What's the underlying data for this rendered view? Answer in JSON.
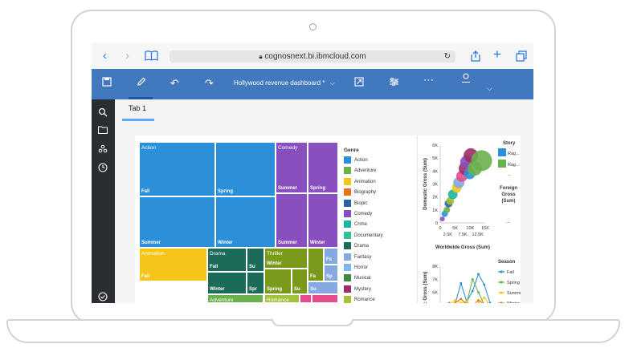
{
  "browser": {
    "url": "cognosnext.bi.ibmcloud.com"
  },
  "app": {
    "dashboard_title": "Hollywood revenue dashboard *"
  },
  "tabs": [
    {
      "label": "Tab 1"
    }
  ],
  "treemap": {
    "cells": [
      {
        "label": "Action",
        "season": "Fall",
        "color": "#2b90d9"
      },
      {
        "label": "",
        "season": "Spring",
        "color": "#2b90d9"
      },
      {
        "label": "",
        "season": "Summer",
        "color": "#2b90d9"
      },
      {
        "label": "",
        "season": "Winter",
        "color": "#2b90d9"
      },
      {
        "label": "Comedy",
        "season": "Summer",
        "color": "#8a4fbf"
      },
      {
        "label": "",
        "season": "Spring",
        "color": "#8a4fbf"
      },
      {
        "label": "",
        "season": "Summer",
        "color": "#8a4fbf"
      },
      {
        "label": "",
        "season": "Winter",
        "color": "#8a4fbf"
      },
      {
        "label": "Animation",
        "season": "Fall",
        "color": "#f5c518"
      },
      {
        "label": "Drama",
        "season": "Fall",
        "color": "#1c6b58"
      },
      {
        "label": "",
        "season": "Su",
        "color": "#1c6b58"
      },
      {
        "label": "",
        "season": "Winter",
        "color": "#1c6b58"
      },
      {
        "label": "",
        "season": "Spr",
        "color": "#1c6b58"
      },
      {
        "label": "Thriller",
        "season": "Winter",
        "color": "#7a9a1c"
      },
      {
        "label": "",
        "season": "Su",
        "color": "#7a9a1c"
      },
      {
        "label": "",
        "season": "Spring",
        "color": "#7a9a1c"
      },
      {
        "label": "",
        "season": "Fa",
        "color": "#7a9a1c"
      },
      {
        "label": "Horror",
        "season": "W",
        "color": "#86a8e0"
      },
      {
        "label": "",
        "season": "Fa",
        "color": "#86a8e0"
      },
      {
        "label": "",
        "season": "Sp",
        "color": "#86a8e0"
      },
      {
        "label": "",
        "season": "Su",
        "color": "#86a8e0"
      },
      {
        "label": "Adventure",
        "season": "",
        "color": "#6ab04c"
      },
      {
        "label": "Romance",
        "season": "",
        "color": "#a3c23a"
      },
      {
        "label": "",
        "season": "",
        "color": "#e94b8a"
      },
      {
        "label": "",
        "season": "",
        "color": "#e94b8a"
      }
    ]
  },
  "legend": {
    "title": "Genre",
    "items": [
      {
        "label": "Action",
        "color": "#2b90d9"
      },
      {
        "label": "Adventure",
        "color": "#6ab04c"
      },
      {
        "label": "Animation",
        "color": "#f5c518"
      },
      {
        "label": "Biography",
        "color": "#e8731a"
      },
      {
        "label": "Biopic",
        "color": "#2d5fa3"
      },
      {
        "label": "Comedy",
        "color": "#8a4fbf"
      },
      {
        "label": "Crime",
        "color": "#1ab5a1"
      },
      {
        "label": "Documentary",
        "color": "#2ec49a"
      },
      {
        "label": "Drama",
        "color": "#1c6b58"
      },
      {
        "label": "Fantasy",
        "color": "#86a8e0"
      },
      {
        "label": "Horror",
        "color": "#7ab7f0"
      },
      {
        "label": "Musical",
        "color": "#3d8a3d"
      },
      {
        "label": "Mystery",
        "color": "#9b2d6b"
      },
      {
        "label": "Romance",
        "color": "#a3c23a"
      }
    ]
  },
  "chart_data": [
    {
      "type": "scatter",
      "xlabel": "Worldwide Gross (Sum)",
      "ylabel": "Domestic Gross (Sum)",
      "x_ticks": [
        "0",
        "2.5K",
        "5K",
        "7.5K",
        "10K",
        "12.5K",
        "15K"
      ],
      "y_ticks": [
        "0",
        "1K",
        "2K",
        "3K",
        "4K",
        "5K",
        "6K"
      ],
      "xlim": [
        0,
        15000
      ],
      "ylim": [
        0,
        6000
      ],
      "legend_title": "Story",
      "legend_items": [
        {
          "label": "Rag...",
          "color": "#2b90d9"
        },
        {
          "label": "Rag...",
          "color": "#6ab04c"
        },
        {
          "label": "..."
        }
      ],
      "size_legend_title": "Foreign Gross (Sum)",
      "size_legend_more": "...",
      "points": [
        {
          "x": 700,
          "y": 300,
          "r": 3,
          "color": "#8a4fbf"
        },
        {
          "x": 1500,
          "y": 700,
          "r": 4,
          "color": "#2b90d9"
        },
        {
          "x": 2200,
          "y": 1000,
          "r": 4,
          "color": "#6ab04c"
        },
        {
          "x": 2800,
          "y": 1500,
          "r": 5,
          "color": "#2d5fa3"
        },
        {
          "x": 3300,
          "y": 1700,
          "r": 5,
          "color": "#a3c23a"
        },
        {
          "x": 4200,
          "y": 2200,
          "r": 6,
          "color": "#1ab5a1"
        },
        {
          "x": 5500,
          "y": 2700,
          "r": 6,
          "color": "#f5c518"
        },
        {
          "x": 6200,
          "y": 3100,
          "r": 7,
          "color": "#86a8e0"
        },
        {
          "x": 7200,
          "y": 3600,
          "r": 7,
          "color": "#e94b8a"
        },
        {
          "x": 8300,
          "y": 4200,
          "r": 8,
          "color": "#9b2d6b"
        },
        {
          "x": 8800,
          "y": 4700,
          "r": 8,
          "color": "#8a4fbf"
        },
        {
          "x": 9800,
          "y": 3800,
          "r": 7,
          "color": "#2b90d9"
        },
        {
          "x": 10200,
          "y": 5200,
          "r": 9,
          "color": "#9b2d6b"
        },
        {
          "x": 11500,
          "y": 4200,
          "r": 9,
          "color": "#6ab04c"
        },
        {
          "x": 13800,
          "y": 4800,
          "r": 13,
          "color": "#6ab04c"
        }
      ]
    },
    {
      "type": "line",
      "ylabel": "Domestic Gross (Sum)",
      "y_ticks": [
        "5K",
        "6K",
        "7K",
        "8K"
      ],
      "legend_title": "Season",
      "series": [
        {
          "name": "Fall",
          "color": "#2b90d9",
          "values": [
            4900,
            5000,
            5100,
            6700,
            5300,
            6100,
            7400,
            6600,
            5200
          ]
        },
        {
          "name": "Spring",
          "color": "#6ab04c",
          "values": [
            5100,
            5200,
            5000,
            5100,
            5200,
            7000,
            6000,
            5100,
            5000
          ]
        },
        {
          "name": "Summer",
          "color": "#f5c518",
          "values": [
            5000,
            5100,
            5400,
            5200,
            5300,
            5000,
            5200,
            5600,
            5000
          ]
        },
        {
          "name": "Winter",
          "color": "#e8731a",
          "values": [
            5000,
            5000,
            5200,
            5500,
            5100,
            5000,
            5400,
            5100,
            5000
          ]
        }
      ]
    }
  ]
}
